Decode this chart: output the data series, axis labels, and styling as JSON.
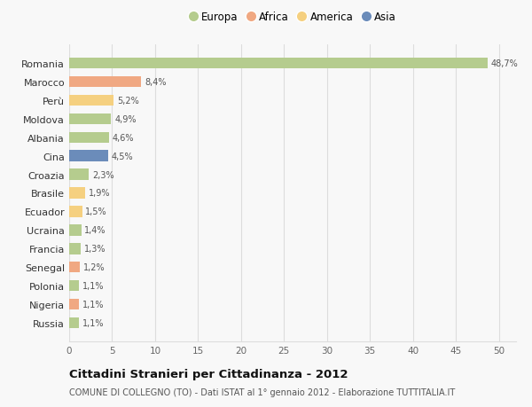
{
  "countries": [
    "Romania",
    "Marocco",
    "Perù",
    "Moldova",
    "Albania",
    "Cina",
    "Croazia",
    "Brasile",
    "Ecuador",
    "Ucraina",
    "Francia",
    "Senegal",
    "Polonia",
    "Nigeria",
    "Russia"
  ],
  "values": [
    48.7,
    8.4,
    5.2,
    4.9,
    4.6,
    4.5,
    2.3,
    1.9,
    1.5,
    1.4,
    1.3,
    1.2,
    1.1,
    1.1,
    1.1
  ],
  "labels": [
    "48,7%",
    "8,4%",
    "5,2%",
    "4,9%",
    "4,6%",
    "4,5%",
    "2,3%",
    "1,9%",
    "1,5%",
    "1,4%",
    "1,3%",
    "1,2%",
    "1,1%",
    "1,1%",
    "1,1%"
  ],
  "continents": [
    "Europa",
    "Africa",
    "America",
    "Europa",
    "Europa",
    "Asia",
    "Europa",
    "America",
    "America",
    "Europa",
    "Europa",
    "Africa",
    "Europa",
    "Africa",
    "Europa"
  ],
  "continent_colors": {
    "Europa": "#b5cc8e",
    "Africa": "#f0a882",
    "America": "#f5d080",
    "Asia": "#6b8cba"
  },
  "legend_items": [
    "Europa",
    "Africa",
    "America",
    "Asia"
  ],
  "legend_colors": [
    "#b5cc8e",
    "#f0a882",
    "#f5d080",
    "#6b8cba"
  ],
  "title": "Cittadini Stranieri per Cittadinanza - 2012",
  "subtitle": "COMUNE DI COLLEGNO (TO) - Dati ISTAT al 1° gennaio 2012 - Elaborazione TUTTITALIA.IT",
  "xlim": [
    0,
    52
  ],
  "xticks": [
    0,
    5,
    10,
    15,
    20,
    25,
    30,
    35,
    40,
    45,
    50
  ],
  "background_color": "#f8f8f8",
  "grid_color": "#dddddd"
}
